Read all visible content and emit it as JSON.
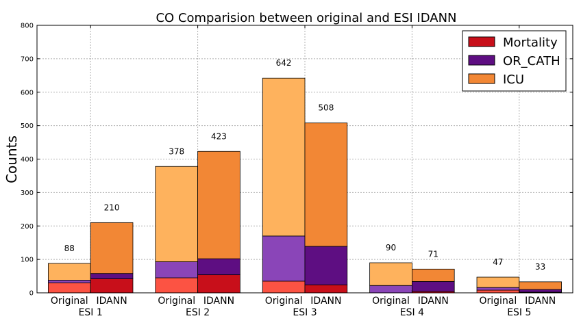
{
  "chart_data": {
    "type": "bar",
    "stacked": true,
    "title": "CO Comparision between original and ESI IDANN",
    "xlabel": "",
    "ylabel": "Counts",
    "ylim": [
      0,
      800
    ],
    "yticks": [
      0,
      100,
      200,
      300,
      400,
      500,
      600,
      700,
      800
    ],
    "grid": true,
    "legend_position": "top-right",
    "groups": [
      {
        "label": "ESI 1",
        "bars": [
          {
            "label": "Original",
            "mortality": 30,
            "or_cath": 8,
            "icu": 50,
            "total": 88
          },
          {
            "label": "IDANN",
            "mortality": 42,
            "or_cath": 16,
            "icu": 152,
            "total": 210
          }
        ]
      },
      {
        "label": "ESI 2",
        "bars": [
          {
            "label": "Original",
            "mortality": 45,
            "or_cath": 48,
            "icu": 285,
            "total": 378
          },
          {
            "label": "IDANN",
            "mortality": 54,
            "or_cath": 48,
            "icu": 321,
            "total": 423
          }
        ]
      },
      {
        "label": "ESI 3",
        "bars": [
          {
            "label": "Original",
            "mortality": 35,
            "or_cath": 135,
            "icu": 472,
            "total": 642
          },
          {
            "label": "IDANN",
            "mortality": 24,
            "or_cath": 115,
            "icu": 369,
            "total": 508
          }
        ]
      },
      {
        "label": "ESI 4",
        "bars": [
          {
            "label": "Original",
            "mortality": 0,
            "or_cath": 22,
            "icu": 68,
            "total": 90
          },
          {
            "label": "IDANN",
            "mortality": 4,
            "or_cath": 30,
            "icu": 37,
            "total": 71
          }
        ]
      },
      {
        "label": "ESI 5",
        "bars": [
          {
            "label": "Original",
            "mortality": 8,
            "or_cath": 8,
            "icu": 31,
            "total": 47
          },
          {
            "label": "IDANN",
            "mortality": 2,
            "or_cath": 8,
            "icu": 23,
            "total": 33
          }
        ]
      }
    ],
    "series": [
      {
        "name": "Mortality",
        "key": "mortality",
        "legend_color": "#c80f1a",
        "original_color": "#fc5343",
        "idann_color": "#c80f1a"
      },
      {
        "name": "OR_CATH",
        "key": "or_cath",
        "legend_color": "#5e0e82",
        "original_color": "#8a45b8",
        "idann_color": "#5e0e82"
      },
      {
        "name": "ICU",
        "key": "icu",
        "legend_color": "#f28735",
        "original_color": "#feb25d",
        "idann_color": "#f28735"
      }
    ]
  }
}
